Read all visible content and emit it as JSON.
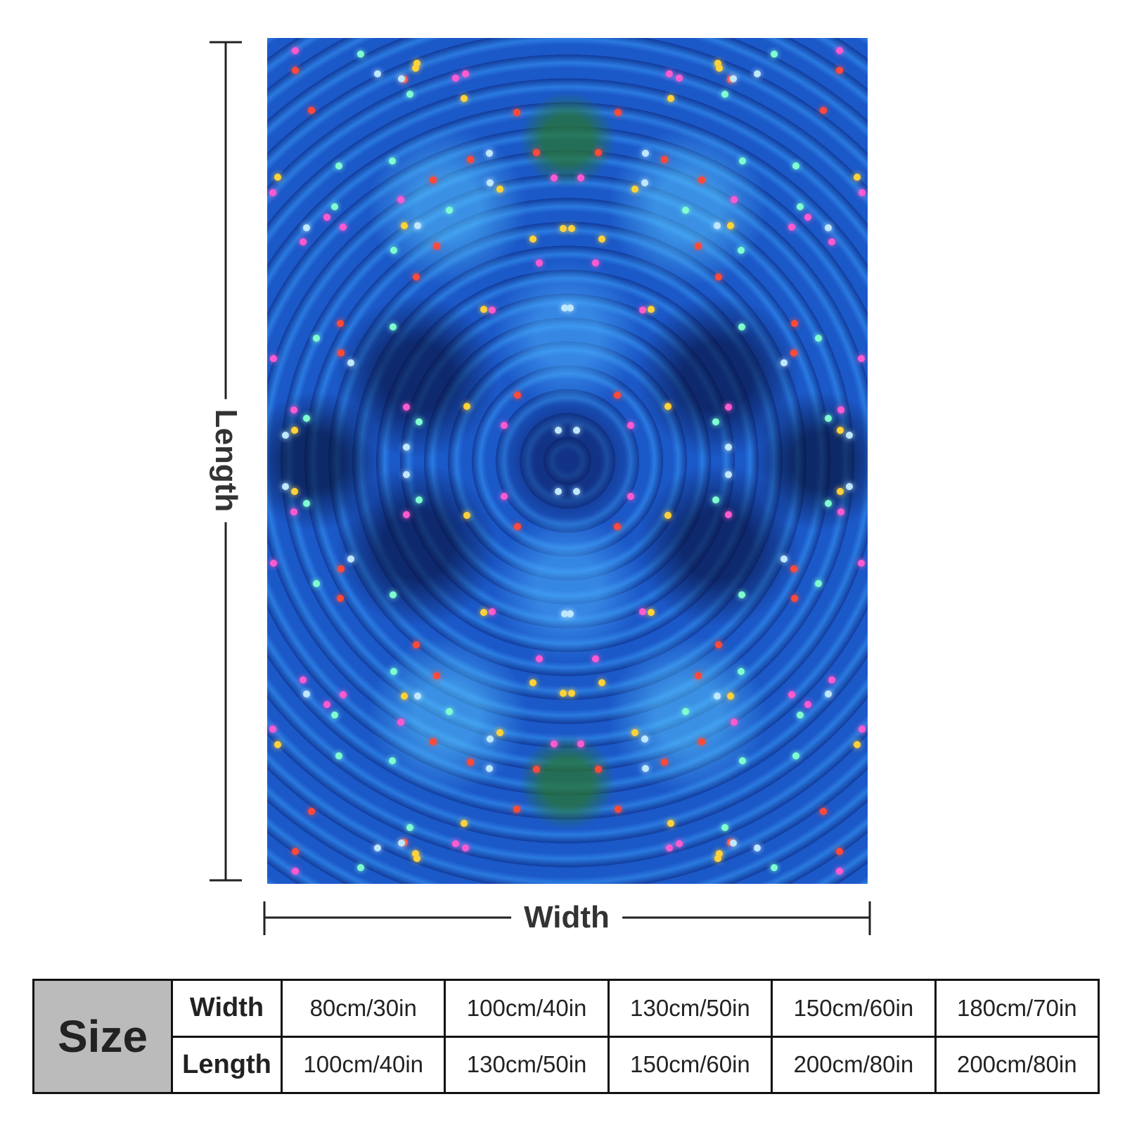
{
  "figure": {
    "length_label": "Length",
    "width_label": "Width"
  },
  "table": {
    "title": "Size",
    "rows": [
      [
        "Width",
        "80cm/30in",
        "100cm/40in",
        "130cm/50in",
        "150cm/60in",
        "180cm/70in"
      ],
      [
        "Length",
        "100cm/40in",
        "130cm/50in",
        "150cm/60in",
        "200cm/80in",
        "200cm/80in"
      ]
    ]
  }
}
